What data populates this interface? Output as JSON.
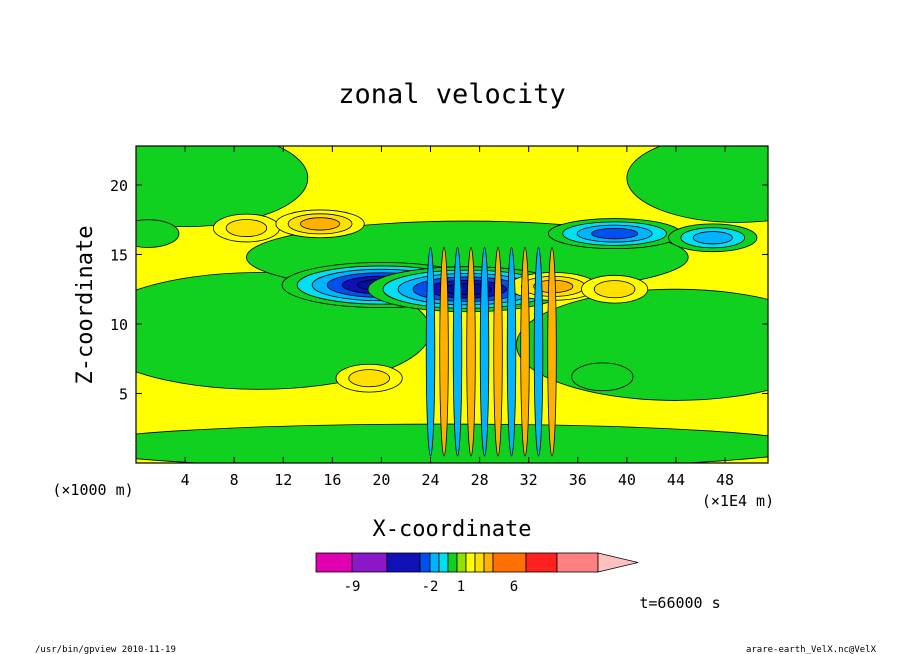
{
  "chart_data": {
    "type": "heatmap",
    "title": "zonal velocity",
    "xlabel": "X-coordinate",
    "ylabel": "Z-coordinate",
    "x_unit": "(×1E4 m)",
    "y_unit": "(×1000 m)",
    "xlim": [
      0,
      51.5
    ],
    "ylim": [
      0,
      22.8
    ],
    "x_ticks": [
      4,
      8,
      12,
      16,
      20,
      24,
      28,
      32,
      36,
      40,
      44,
      48
    ],
    "y_ticks": [
      5,
      10,
      15,
      20
    ],
    "colorbar": {
      "colors": [
        "#e000b0",
        "#8a18c8",
        "#1010b8",
        "#0050f0",
        "#00b4ff",
        "#00e0f0",
        "#10d020",
        "#90e000",
        "#ffff00",
        "#ffe000",
        "#ffb000",
        "#ff7000",
        "#ff2020",
        "#ff8080",
        "#ffc0c0"
      ],
      "tick_labels": [
        "-9",
        "-2",
        "1",
        "6"
      ]
    },
    "contour_features": [
      {
        "sign": "negative",
        "x": 20,
        "z": 12.8,
        "peak": -9
      },
      {
        "sign": "negative",
        "x": 27,
        "z": 12.5,
        "peak": -9
      },
      {
        "sign": "negative",
        "x": 39,
        "z": 16.5,
        "peak": -6
      },
      {
        "sign": "negative",
        "x": 47,
        "z": 16.2,
        "peak": -4
      },
      {
        "sign": "negative",
        "x": 38,
        "z": 6.2,
        "peak": -2
      },
      {
        "sign": "negative",
        "x": 1,
        "z": 16.5,
        "peak": -2
      },
      {
        "sign": "positive",
        "x": 9,
        "z": 16.9,
        "peak": 3
      },
      {
        "sign": "positive",
        "x": 15,
        "z": 17.2,
        "peak": 4
      },
      {
        "sign": "positive",
        "x": 34,
        "z": 12.7,
        "peak": 4
      },
      {
        "sign": "positive",
        "x": 39,
        "z": 12.5,
        "peak": 3
      },
      {
        "sign": "positive",
        "x": 19,
        "z": 6.1,
        "peak": 3
      }
    ]
  },
  "time_label": "t=66000 s",
  "footer": {
    "left": "/usr/bin/gpview   2010-11-19",
    "right": "arare-earth_VelX.nc@VelX"
  }
}
